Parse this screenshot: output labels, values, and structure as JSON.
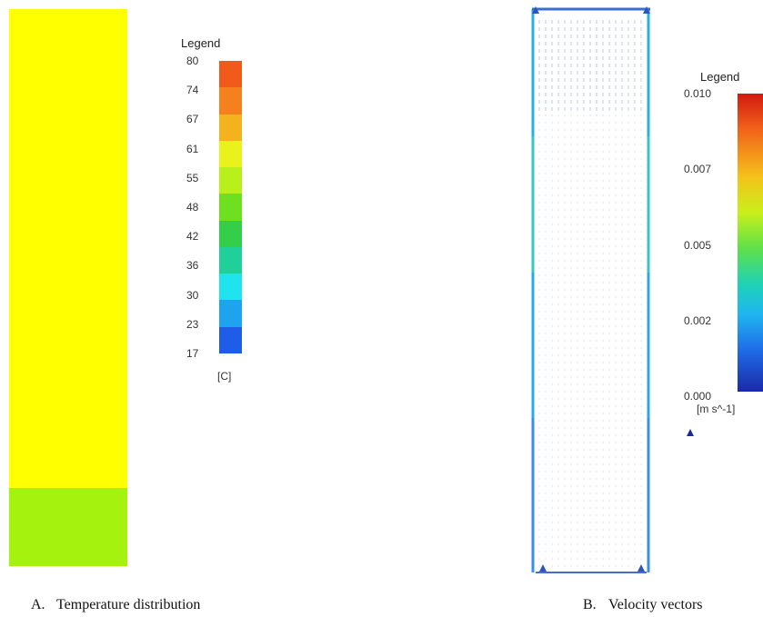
{
  "panel_a": {
    "legend_title": "Legend",
    "ticks": [
      "80",
      "74",
      "67",
      "61",
      "55",
      "48",
      "42",
      "36",
      "30",
      "23",
      "17"
    ],
    "band_colors": [
      "#f25a1c",
      "#f5801e",
      "#f5b21f",
      "#e9f21a",
      "#b8f01b",
      "#6fe01f",
      "#34cf4a",
      "#1fd09a",
      "#1fe3ee",
      "#1ea3ef",
      "#1f5ce8"
    ],
    "unit": "[C]",
    "field_main_color": "#ffff00",
    "field_bottom_color": "#a6f20f",
    "bottom_band_start": 0.86,
    "caption_letter": "A.",
    "caption_text": "Temperature distribution"
  },
  "panel_b": {
    "legend_title": "Legend",
    "ticks": [
      "0.010",
      "0.007",
      "0.005",
      "0.002",
      "0.000"
    ],
    "unit": "[m s^-1]",
    "caption_letter": "B.",
    "caption_text": "Velocity vectors"
  }
}
